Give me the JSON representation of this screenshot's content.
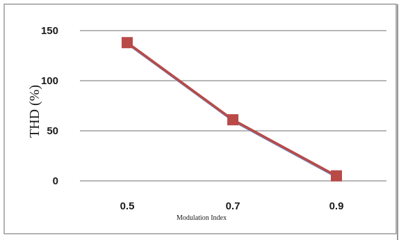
{
  "chart_data": {
    "type": "line",
    "title": "",
    "xlabel": "Modulation Index",
    "ylabel": "THD (%)",
    "categories": [
      "0.5",
      "0.7",
      "0.9"
    ],
    "series": [
      {
        "values": [
          138,
          61,
          5
        ],
        "color": "#b94a48",
        "marker": "square"
      }
    ],
    "y_ticks": [
      "0",
      "50",
      "100",
      "150"
    ],
    "ylim": [
      0,
      150
    ],
    "grid": true,
    "legend": "none",
    "colors": {
      "line": "#b94a48",
      "line_shadow": "#6f86b8",
      "marker": "#b94a48",
      "grid": "#8c8c8c",
      "frame": "#999999"
    }
  }
}
